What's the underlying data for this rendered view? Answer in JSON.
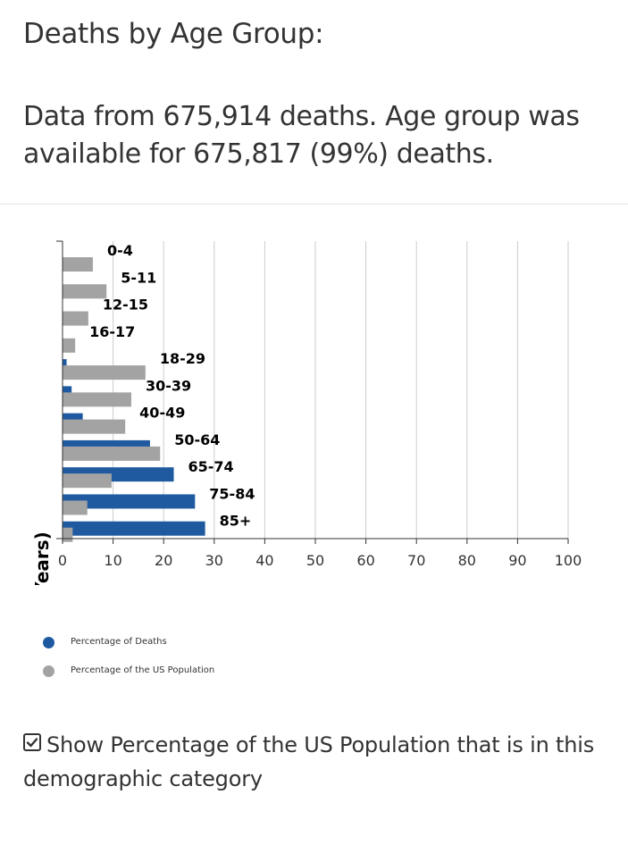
{
  "section": {
    "title": "Deaths by Age Group:",
    "summary": "Data from 675,914 deaths. Age group was available for 675,817 (99%) deaths."
  },
  "chart_data": {
    "type": "bar",
    "orientation": "horizontal",
    "title": "",
    "xlabel": "",
    "ylabel": "Age Group (Years)",
    "xlim": [
      0,
      100
    ],
    "xticks": [
      0,
      10,
      20,
      30,
      40,
      50,
      60,
      70,
      80,
      90,
      100
    ],
    "grid": true,
    "categories": [
      "0-4",
      "5-11",
      "12-15",
      "16-17",
      "18-29",
      "30-39",
      "40-49",
      "50-64",
      "65-74",
      "75-84",
      "85+"
    ],
    "series": [
      {
        "name": "Percentage of Deaths",
        "color": "#1f5aa0",
        "values": [
          0.0,
          0.0,
          0.0,
          0.0,
          0.8,
          1.8,
          4.0,
          17.3,
          22.0,
          26.2,
          28.2
        ]
      },
      {
        "name": "Percentage of the US Population",
        "color": "#a3a3a3",
        "values": [
          6.0,
          8.7,
          5.1,
          2.5,
          16.4,
          13.6,
          12.4,
          19.3,
          9.7,
          4.9,
          2.0
        ]
      }
    ],
    "legend_position": "bottom-left"
  },
  "toggle": {
    "checked": true,
    "label": "Show Percentage of the US Population that is in this demographic category"
  }
}
